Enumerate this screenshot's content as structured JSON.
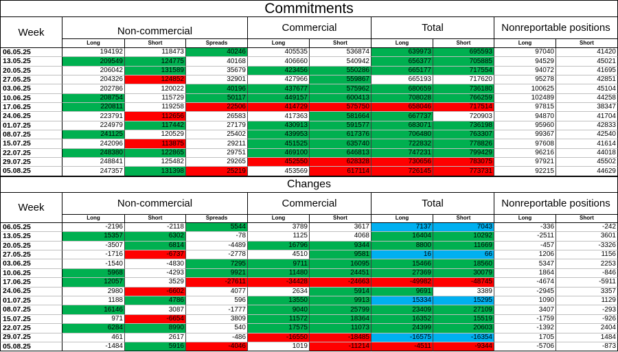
{
  "highlight_colors": {
    "green": "#00b050",
    "red": "#ff0000",
    "blue": "#00b0f0"
  },
  "chart_data": [
    {
      "type": "table",
      "title": "Commitments",
      "row_header": "Week",
      "column_groups": [
        {
          "name": "Non-commercial",
          "columns": [
            "Long",
            "Short",
            "Spreads"
          ]
        },
        {
          "name": "Commercial",
          "columns": [
            "Long",
            "Short"
          ]
        },
        {
          "name": "Total",
          "columns": [
            "Long",
            "Short"
          ]
        },
        {
          "name": "Nonreportable positions",
          "columns": [
            "Long",
            "Short"
          ]
        }
      ],
      "rows": [
        {
          "week": "06.05.25",
          "values": [
            194192,
            118473,
            40246,
            405535,
            536874,
            639973,
            695593,
            97040,
            41420
          ],
          "highlight": [
            "",
            "",
            "green",
            "",
            "",
            "green",
            "green",
            "",
            ""
          ]
        },
        {
          "week": "13.05.25",
          "values": [
            209549,
            124775,
            40168,
            406660,
            540942,
            656377,
            705885,
            94529,
            45021
          ],
          "highlight": [
            "green",
            "green",
            "",
            "",
            "",
            "green",
            "green",
            "",
            ""
          ]
        },
        {
          "week": "20.05.25",
          "values": [
            206042,
            131589,
            35679,
            423456,
            550286,
            665177,
            717554,
            94072,
            41695
          ],
          "highlight": [
            "",
            "green",
            "",
            "green",
            "green",
            "green",
            "green",
            "",
            ""
          ]
        },
        {
          "week": "27.05.25",
          "values": [
            204326,
            124852,
            32901,
            427966,
            559867,
            665193,
            717620,
            95278,
            42851
          ],
          "highlight": [
            "",
            "red",
            "",
            "",
            "green",
            "",
            "",
            "",
            ""
          ]
        },
        {
          "week": "03.06.25",
          "values": [
            202786,
            120022,
            40196,
            437677,
            575962,
            680659,
            736180,
            100625,
            45104
          ],
          "highlight": [
            "",
            "",
            "green",
            "green",
            "green",
            "green",
            "green",
            "",
            ""
          ]
        },
        {
          "week": "10.06.25",
          "values": [
            208754,
            115729,
            50117,
            449157,
            600413,
            708028,
            766259,
            102489,
            44258
          ],
          "highlight": [
            "green",
            "",
            "green",
            "green",
            "green",
            "green",
            "green",
            "",
            ""
          ]
        },
        {
          "week": "17.06.25",
          "values": [
            220811,
            119258,
            22506,
            414729,
            575750,
            658046,
            717514,
            97815,
            38347
          ],
          "highlight": [
            "green",
            "",
            "red",
            "red",
            "red",
            "red",
            "red",
            "",
            ""
          ]
        },
        {
          "week": "24.06.25",
          "values": [
            223791,
            112656,
            26583,
            417363,
            581664,
            667737,
            720903,
            94870,
            41704
          ],
          "highlight": [
            "",
            "red",
            "",
            "",
            "green",
            "green",
            "",
            "",
            ""
          ]
        },
        {
          "week": "01.07.25",
          "values": [
            224979,
            117442,
            27179,
            430913,
            591577,
            683071,
            736198,
            95960,
            42833
          ],
          "highlight": [
            "",
            "green",
            "",
            "green",
            "green",
            "green",
            "green",
            "",
            ""
          ]
        },
        {
          "week": "08.07.25",
          "values": [
            241125,
            120529,
            25402,
            439953,
            617376,
            706480,
            763307,
            99367,
            42540
          ],
          "highlight": [
            "green",
            "",
            "",
            "green",
            "green",
            "green",
            "green",
            "",
            ""
          ]
        },
        {
          "week": "15.07.25",
          "values": [
            242096,
            113875,
            29211,
            451525,
            635740,
            722832,
            778826,
            97608,
            41614
          ],
          "highlight": [
            "",
            "red",
            "",
            "green",
            "green",
            "green",
            "green",
            "",
            ""
          ]
        },
        {
          "week": "22.07.25",
          "values": [
            248380,
            122865,
            29751,
            469100,
            646813,
            747231,
            799429,
            96216,
            44018
          ],
          "highlight": [
            "green",
            "green",
            "",
            "green",
            "green",
            "green",
            "green",
            "",
            ""
          ]
        },
        {
          "week": "29.07.25",
          "values": [
            248841,
            125482,
            29265,
            452550,
            628328,
            730656,
            783075,
            97921,
            45502
          ],
          "highlight": [
            "",
            "",
            "",
            "red",
            "red",
            "red",
            "red",
            "",
            ""
          ]
        },
        {
          "week": "05.08.25",
          "values": [
            247357,
            131398,
            25219,
            453569,
            617114,
            726145,
            773731,
            92215,
            44629
          ],
          "highlight": [
            "",
            "green",
            "red",
            "",
            "red",
            "red",
            "red",
            "",
            ""
          ]
        }
      ]
    },
    {
      "type": "table",
      "title": "Changes",
      "row_header": "Week",
      "column_groups": [
        {
          "name": "Non-commercial",
          "columns": [
            "Long",
            "Short",
            "Spreads"
          ]
        },
        {
          "name": "Commercial",
          "columns": [
            "Long",
            "Short"
          ]
        },
        {
          "name": "Total",
          "columns": [
            "Long",
            "Short"
          ]
        },
        {
          "name": "Nonreportable positions",
          "columns": [
            "Long",
            "Short"
          ]
        }
      ],
      "rows": [
        {
          "week": "06.05.25",
          "values": [
            -2196,
            -2118,
            5544,
            3789,
            3617,
            7137,
            7043,
            -336,
            -242
          ],
          "highlight": [
            "",
            "",
            "green",
            "",
            "",
            "blue",
            "blue",
            "",
            ""
          ]
        },
        {
          "week": "13.05.25",
          "values": [
            15357,
            6302,
            -78,
            1125,
            4068,
            16404,
            10292,
            -2511,
            3601
          ],
          "highlight": [
            "green",
            "green",
            "",
            "",
            "",
            "green",
            "green",
            "",
            ""
          ]
        },
        {
          "week": "20.05.25",
          "values": [
            -3507,
            6814,
            -4489,
            16796,
            9344,
            8800,
            11669,
            -457,
            -3326
          ],
          "highlight": [
            "",
            "green",
            "",
            "green",
            "green",
            "green",
            "green",
            "",
            ""
          ]
        },
        {
          "week": "27.05.25",
          "values": [
            -1716,
            -6737,
            -2778,
            4510,
            9581,
            16,
            66,
            1206,
            1156
          ],
          "highlight": [
            "",
            "red",
            "",
            "",
            "green",
            "blue",
            "blue",
            "",
            ""
          ]
        },
        {
          "week": "03.06.25",
          "values": [
            -1540,
            -4830,
            7295,
            9711,
            16095,
            15466,
            18560,
            5347,
            2253
          ],
          "highlight": [
            "",
            "",
            "green",
            "green",
            "green",
            "green",
            "green",
            "",
            ""
          ]
        },
        {
          "week": "10.06.25",
          "values": [
            5968,
            -4293,
            9921,
            11480,
            24451,
            27369,
            30079,
            1864,
            -846
          ],
          "highlight": [
            "green",
            "",
            "green",
            "green",
            "green",
            "green",
            "green",
            "",
            ""
          ]
        },
        {
          "week": "17.06.25",
          "values": [
            12057,
            3529,
            -27611,
            -34428,
            -24663,
            -49982,
            -48745,
            -4674,
            -5911
          ],
          "highlight": [
            "green",
            "",
            "red",
            "red",
            "red",
            "red",
            "red",
            "",
            ""
          ]
        },
        {
          "week": "24.06.25",
          "values": [
            2980,
            -6602,
            4077,
            2634,
            5914,
            9691,
            3389,
            -2945,
            3357
          ],
          "highlight": [
            "",
            "red",
            "",
            "",
            "green",
            "green",
            "",
            "",
            ""
          ]
        },
        {
          "week": "01.07.25",
          "values": [
            1188,
            4786,
            596,
            13550,
            9913,
            15334,
            15295,
            1090,
            1129
          ],
          "highlight": [
            "",
            "green",
            "",
            "green",
            "green",
            "blue",
            "blue",
            "",
            ""
          ]
        },
        {
          "week": "08.07.25",
          "values": [
            16146,
            3087,
            -1777,
            9040,
            25799,
            23409,
            27109,
            3407,
            -293
          ],
          "highlight": [
            "green",
            "",
            "",
            "green",
            "green",
            "green",
            "green",
            "",
            ""
          ]
        },
        {
          "week": "15.07.25",
          "values": [
            971,
            -6654,
            3809,
            11572,
            18364,
            16352,
            15519,
            -1759,
            -926
          ],
          "highlight": [
            "",
            "red",
            "",
            "green",
            "green",
            "green",
            "green",
            "",
            ""
          ]
        },
        {
          "week": "22.07.25",
          "values": [
            6284,
            8990,
            540,
            17575,
            11073,
            24399,
            20603,
            -1392,
            2404
          ],
          "highlight": [
            "green",
            "green",
            "",
            "green",
            "green",
            "green",
            "green",
            "",
            ""
          ]
        },
        {
          "week": "29.07.25",
          "values": [
            461,
            2617,
            -486,
            -16550,
            -18485,
            -16575,
            -16354,
            1705,
            1484
          ],
          "highlight": [
            "",
            "",
            "",
            "red",
            "red",
            "blue",
            "blue",
            "",
            ""
          ]
        },
        {
          "week": "05.08.25",
          "values": [
            -1484,
            5916,
            -4046,
            1019,
            -11214,
            -4511,
            -9344,
            -5706,
            -873
          ],
          "highlight": [
            "",
            "green",
            "red",
            "",
            "red",
            "red",
            "red",
            "",
            ""
          ]
        }
      ]
    }
  ]
}
